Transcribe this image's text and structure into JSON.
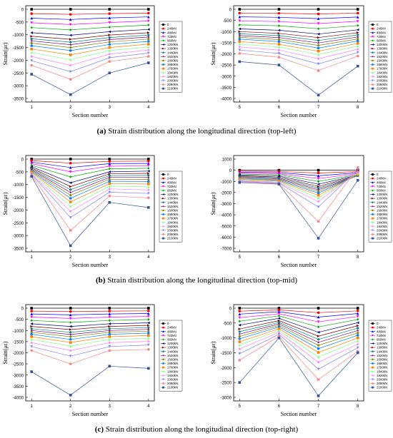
{
  "captions": [
    {
      "tag": "(a)",
      "text": "Strain distribution along the longitudinal direction (top-left)"
    },
    {
      "tag": "(b)",
      "text": "Strain distribution along the longitudinal direction (top-mid)"
    },
    {
      "tag": "(c)",
      "text": "Strain distribution along the longitudinal direction (top-right)"
    }
  ],
  "legend_labels": [
    "0",
    "240kN",
    "480kN",
    "720kN",
    "960kN",
    "1200kN",
    "1300kN",
    "1440kN",
    "1520kN",
    "1600kN",
    "1680kN",
    "1760kN",
    "1840kN",
    "1920kN",
    "2000kN",
    "2080kN",
    "2100kN"
  ],
  "colors": [
    "#000000",
    "#ff0000",
    "#0000ff",
    "#ff00ff",
    "#00aa00",
    "#000080",
    "#800000",
    "#008080",
    "#800080",
    "#808000",
    "#0080ff",
    "#ff8000",
    "#80ff80",
    "#ff80ff",
    "#8080ff",
    "#ff8080",
    "#3050a0"
  ],
  "chart_data": [
    {
      "type": "line",
      "xlabel": "Section number",
      "ylabel": "Strain(με)",
      "x": [
        1,
        2,
        3,
        4
      ],
      "ylim": [
        -3500,
        0
      ],
      "yticks": [
        0,
        -500,
        -1000,
        -1500,
        -2000,
        -2500,
        -3000,
        -3500
      ],
      "series": [
        {
          "name": "0",
          "values": [
            0,
            0,
            0,
            0
          ]
        },
        {
          "name": "240kN",
          "values": [
            -170,
            -200,
            -170,
            -150
          ]
        },
        {
          "name": "480kN",
          "values": [
            -350,
            -400,
            -340,
            -300
          ]
        },
        {
          "name": "720kN",
          "values": [
            -530,
            -600,
            -520,
            -460
          ]
        },
        {
          "name": "960kN",
          "values": [
            -720,
            -810,
            -700,
            -620
          ]
        },
        {
          "name": "1200kN",
          "values": [
            -920,
            -1020,
            -880,
            -790
          ]
        },
        {
          "name": "1300kN",
          "values": [
            -1060,
            -1180,
            -1010,
            -920
          ]
        },
        {
          "name": "1440kN",
          "values": [
            -1160,
            -1290,
            -1110,
            -1010
          ]
        },
        {
          "name": "1520kN",
          "values": [
            -1240,
            -1390,
            -1190,
            -1090
          ]
        },
        {
          "name": "1600kN",
          "values": [
            -1330,
            -1500,
            -1280,
            -1170
          ]
        },
        {
          "name": "1680kN",
          "values": [
            -1430,
            -1620,
            -1380,
            -1260
          ]
        },
        {
          "name": "1760kN",
          "values": [
            -1560,
            -1790,
            -1500,
            -1370
          ]
        },
        {
          "name": "1840kN",
          "values": [
            -1700,
            -1980,
            -1620,
            -1480
          ]
        },
        {
          "name": "1920kN",
          "values": [
            -1850,
            -2200,
            -1760,
            -1600
          ]
        },
        {
          "name": "2000kN",
          "values": [
            -2020,
            -2450,
            -1900,
            -1720
          ]
        },
        {
          "name": "2080kN",
          "values": [
            -2200,
            -2750,
            -2050,
            -1850
          ]
        },
        {
          "name": "2100kN",
          "values": [
            -2550,
            -3350,
            -2500,
            -2100
          ]
        }
      ]
    },
    {
      "type": "line",
      "xlabel": "Section number",
      "ylabel": "Strain(με)",
      "x": [
        5,
        6,
        7,
        8
      ],
      "ylim": [
        -4000,
        0
      ],
      "yticks": [
        0,
        -500,
        -1000,
        -1500,
        -2000,
        -2500,
        -3000,
        -3500,
        -4000
      ],
      "series": [
        {
          "name": "0",
          "values": [
            0,
            0,
            0,
            0
          ]
        },
        {
          "name": "240kN",
          "values": [
            -170,
            -180,
            -210,
            -170
          ]
        },
        {
          "name": "480kN",
          "values": [
            -340,
            -360,
            -420,
            -350
          ]
        },
        {
          "name": "720kN",
          "values": [
            -520,
            -550,
            -640,
            -540
          ]
        },
        {
          "name": "960kN",
          "values": [
            -700,
            -740,
            -870,
            -730
          ]
        },
        {
          "name": "1200kN",
          "values": [
            -880,
            -940,
            -1110,
            -920
          ]
        },
        {
          "name": "1300kN",
          "values": [
            -1000,
            -1080,
            -1270,
            -1050
          ]
        },
        {
          "name": "1440kN",
          "values": [
            -1100,
            -1180,
            -1400,
            -1150
          ]
        },
        {
          "name": "1520kN",
          "values": [
            -1180,
            -1270,
            -1510,
            -1240
          ]
        },
        {
          "name": "1600kN",
          "values": [
            -1260,
            -1360,
            -1620,
            -1330
          ]
        },
        {
          "name": "1680kN",
          "values": [
            -1340,
            -1450,
            -1740,
            -1420
          ]
        },
        {
          "name": "1760kN",
          "values": [
            -1450,
            -1570,
            -1880,
            -1530
          ]
        },
        {
          "name": "1840kN",
          "values": [
            -1560,
            -1690,
            -2030,
            -1650
          ]
        },
        {
          "name": "1920kN",
          "values": [
            -1690,
            -1830,
            -2220,
            -1790
          ]
        },
        {
          "name": "2000kN",
          "values": [
            -1830,
            -1980,
            -2450,
            -1940
          ]
        },
        {
          "name": "2080kN",
          "values": [
            -1980,
            -2150,
            -2750,
            -2100
          ]
        },
        {
          "name": "2100kN",
          "values": [
            -2350,
            -2500,
            -3850,
            -2550
          ]
        }
      ]
    },
    {
      "type": "line",
      "xlabel": "Section number",
      "ylabel": "Strain(με)",
      "x": [
        1,
        2,
        3,
        4
      ],
      "ylim": [
        -3500,
        0
      ],
      "yticks": [
        0,
        -500,
        -1000,
        -1500,
        -2000,
        -2500,
        -3000,
        -3500
      ],
      "series": [
        {
          "name": "0",
          "values": [
            0,
            0,
            0,
            0
          ]
        },
        {
          "name": "240kN",
          "values": [
            -60,
            -160,
            -90,
            -80
          ]
        },
        {
          "name": "480kN",
          "values": [
            -120,
            -330,
            -180,
            -170
          ]
        },
        {
          "name": "720kN",
          "values": [
            -180,
            -500,
            -280,
            -260
          ]
        },
        {
          "name": "960kN",
          "values": [
            -240,
            -700,
            -380,
            -360
          ]
        },
        {
          "name": "1200kN",
          "values": [
            -300,
            -930,
            -500,
            -470
          ]
        },
        {
          "name": "1300kN",
          "values": [
            -350,
            -1080,
            -580,
            -560
          ]
        },
        {
          "name": "1440kN",
          "values": [
            -390,
            -1200,
            -650,
            -640
          ]
        },
        {
          "name": "1520kN",
          "values": [
            -420,
            -1310,
            -720,
            -720
          ]
        },
        {
          "name": "1600kN",
          "values": [
            -450,
            -1420,
            -790,
            -800
          ]
        },
        {
          "name": "1680kN",
          "values": [
            -480,
            -1540,
            -870,
            -880
          ]
        },
        {
          "name": "1760kN",
          "values": [
            -510,
            -1680,
            -960,
            -980
          ]
        },
        {
          "name": "1840kN",
          "values": [
            -540,
            -1850,
            -1060,
            -1090
          ]
        },
        {
          "name": "1920kN",
          "values": [
            -570,
            -2050,
            -1170,
            -1210
          ]
        },
        {
          "name": "2000kN",
          "values": [
            -600,
            -2300,
            -1300,
            -1350
          ]
        },
        {
          "name": "2080kN",
          "values": [
            -630,
            -2800,
            -1450,
            -1520
          ]
        },
        {
          "name": "2100kN",
          "values": [
            -680,
            -3400,
            -1700,
            -1900
          ]
        }
      ]
    },
    {
      "type": "line",
      "xlabel": "Section number",
      "ylabel": "Strain(με)",
      "x": [
        5,
        6,
        7,
        8
      ],
      "ylim": [
        -7000,
        1000
      ],
      "yticks": [
        1000,
        0,
        -1000,
        -2000,
        -3000,
        -4000,
        -5000,
        -6000,
        -7000
      ],
      "series": [
        {
          "name": "0",
          "values": [
            0,
            0,
            0,
            0
          ]
        },
        {
          "name": "240kN",
          "values": [
            -90,
            -110,
            -250,
            -120
          ]
        },
        {
          "name": "480kN",
          "values": [
            -180,
            -210,
            -500,
            -220
          ]
        },
        {
          "name": "720kN",
          "values": [
            -260,
            -310,
            -750,
            -300
          ]
        },
        {
          "name": "960kN",
          "values": [
            -340,
            -410,
            -1000,
            -380
          ]
        },
        {
          "name": "1200kN",
          "values": [
            -420,
            -520,
            -1250,
            -440
          ]
        },
        {
          "name": "1300kN",
          "values": [
            -500,
            -620,
            -1450,
            -480
          ]
        },
        {
          "name": "1440kN",
          "values": [
            -560,
            -700,
            -1600,
            -500
          ]
        },
        {
          "name": "1520kN",
          "values": [
            -620,
            -770,
            -1750,
            -500
          ]
        },
        {
          "name": "1600kN",
          "values": [
            -680,
            -840,
            -1900,
            -480
          ]
        },
        {
          "name": "1680kN",
          "values": [
            -740,
            -910,
            -2050,
            -440
          ]
        },
        {
          "name": "1760kN",
          "values": [
            -800,
            -980,
            -2250,
            -380
          ]
        },
        {
          "name": "1840kN",
          "values": [
            -860,
            -1040,
            -2500,
            -280
          ]
        },
        {
          "name": "1920kN",
          "values": [
            -920,
            -1100,
            -2800,
            -150
          ]
        },
        {
          "name": "2000kN",
          "values": [
            -980,
            -1150,
            -3300,
            50
          ]
        },
        {
          "name": "2080kN",
          "values": [
            -1040,
            -1200,
            -4600,
            250
          ]
        },
        {
          "name": "2100kN",
          "values": [
            -1100,
            -1250,
            -6100,
            -900
          ]
        }
      ]
    },
    {
      "type": "line",
      "xlabel": "Section number",
      "ylabel": "Strain(με)",
      "x": [
        1,
        2,
        3,
        4
      ],
      "ylim": [
        -4000,
        0
      ],
      "yticks": [
        0,
        -500,
        -1000,
        -1500,
        -2000,
        -2500,
        -3000,
        -3500,
        -4000
      ],
      "series": [
        {
          "name": "0",
          "values": [
            0,
            0,
            0,
            0
          ]
        },
        {
          "name": "240kN",
          "values": [
            -130,
            -150,
            -130,
            -120
          ]
        },
        {
          "name": "480kN",
          "values": [
            -260,
            -300,
            -260,
            -240
          ]
        },
        {
          "name": "720kN",
          "values": [
            -400,
            -460,
            -400,
            -370
          ]
        },
        {
          "name": "960kN",
          "values": [
            -550,
            -640,
            -550,
            -510
          ]
        },
        {
          "name": "1200kN",
          "values": [
            -700,
            -820,
            -700,
            -660
          ]
        },
        {
          "name": "1300kN",
          "values": [
            -820,
            -960,
            -820,
            -770
          ]
        },
        {
          "name": "1440kN",
          "values": [
            -920,
            -1080,
            -920,
            -870
          ]
        },
        {
          "name": "1520kN",
          "values": [
            -1000,
            -1180,
            -1000,
            -950
          ]
        },
        {
          "name": "1600kN",
          "values": [
            -1080,
            -1280,
            -1080,
            -1030
          ]
        },
        {
          "name": "1680kN",
          "values": [
            -1170,
            -1400,
            -1170,
            -1120
          ]
        },
        {
          "name": "1760kN",
          "values": [
            -1280,
            -1540,
            -1280,
            -1230
          ]
        },
        {
          "name": "1840kN",
          "values": [
            -1400,
            -1700,
            -1400,
            -1350
          ]
        },
        {
          "name": "1920kN",
          "values": [
            -1550,
            -1900,
            -1550,
            -1490
          ]
        },
        {
          "name": "2000kN",
          "values": [
            -1720,
            -2150,
            -1720,
            -1650
          ]
        },
        {
          "name": "2080kN",
          "values": [
            -1900,
            -2500,
            -1900,
            -1850
          ]
        },
        {
          "name": "2100kN",
          "values": [
            -2850,
            -3900,
            -2600,
            -2700
          ]
        }
      ]
    },
    {
      "type": "line",
      "xlabel": "Section number",
      "ylabel": "Strain(με)",
      "x": [
        5,
        6,
        7,
        8
      ],
      "ylim": [
        -3000,
        0
      ],
      "yticks": [
        0,
        -500,
        -1000,
        -1500,
        -2000,
        -2500,
        -3000
      ],
      "series": [
        {
          "name": "0",
          "values": [
            0,
            0,
            0,
            0
          ]
        },
        {
          "name": "240kN",
          "values": [
            -100,
            -60,
            -150,
            -90
          ]
        },
        {
          "name": "480kN",
          "values": [
            -200,
            -120,
            -300,
            -180
          ]
        },
        {
          "name": "720kN",
          "values": [
            -320,
            -190,
            -460,
            -280
          ]
        },
        {
          "name": "960kN",
          "values": [
            -440,
            -260,
            -630,
            -380
          ]
        },
        {
          "name": "1200kN",
          "values": [
            -570,
            -340,
            -810,
            -490
          ]
        },
        {
          "name": "1300kN",
          "values": [
            -700,
            -420,
            -940,
            -590
          ]
        },
        {
          "name": "1440kN",
          "values": [
            -790,
            -480,
            -1050,
            -670
          ]
        },
        {
          "name": "1520kN",
          "values": [
            -870,
            -530,
            -1150,
            -750
          ]
        },
        {
          "name": "1600kN",
          "values": [
            -950,
            -580,
            -1250,
            -830
          ]
        },
        {
          "name": "1680kN",
          "values": [
            -1030,
            -630,
            -1360,
            -910
          ]
        },
        {
          "name": "1760kN",
          "values": [
            -1130,
            -690,
            -1490,
            -1000
          ]
        },
        {
          "name": "1840kN",
          "values": [
            -1240,
            -750,
            -1640,
            -1100
          ]
        },
        {
          "name": "1920kN",
          "values": [
            -1370,
            -810,
            -1820,
            -1210
          ]
        },
        {
          "name": "2000kN",
          "values": [
            -1530,
            -880,
            -2050,
            -1330
          ]
        },
        {
          "name": "2080kN",
          "values": [
            -1750,
            -950,
            -2400,
            -1450
          ]
        },
        {
          "name": "2100kN",
          "values": [
            -2500,
            -1000,
            -2950,
            -1500
          ]
        }
      ]
    }
  ]
}
